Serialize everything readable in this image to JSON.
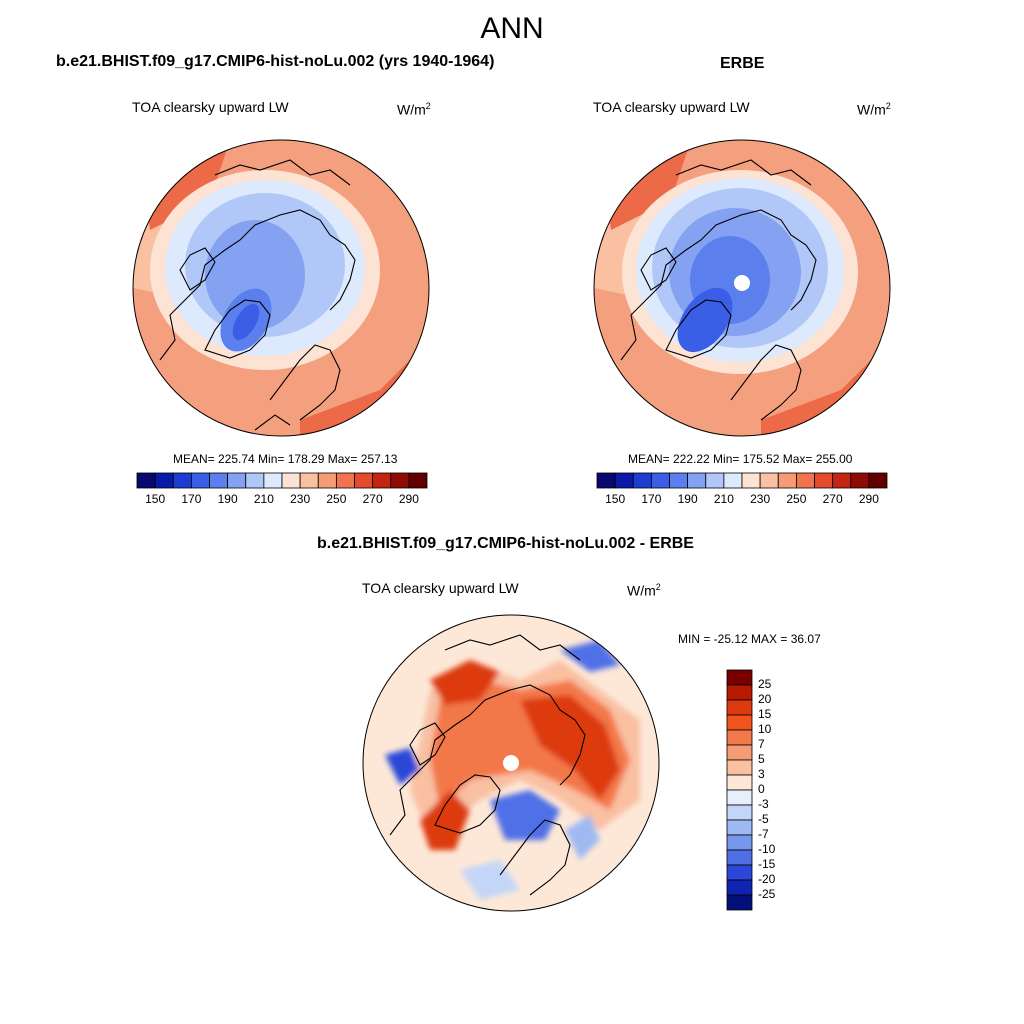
{
  "figure": {
    "season": "ANN",
    "left_title": "b.e21.BHIST.f09_g17.CMIP6-hist-noLu.002 (yrs 1940-1964)",
    "right_title": "ERBE",
    "diff_title": "b.e21.BHIST.f09_g17.CMIP6-hist-noLu.002 - ERBE",
    "variable": "TOA clearsky upward LW",
    "units_base": "W/m",
    "units_exp": "2"
  },
  "chart_data": [
    {
      "type": "heatmap",
      "name": "model",
      "title": "TOA clearsky upward LW",
      "projection": "north polar stereographic",
      "stats_text": "MEAN= 225.74  Min= 178.29  Max= 257.13",
      "mean": 225.74,
      "min": 178.29,
      "max": 257.13,
      "colorbar_ticks": [
        "150",
        "170",
        "190",
        "210",
        "230",
        "250",
        "270",
        "290"
      ],
      "colorbar_levels": [
        150,
        160,
        170,
        180,
        190,
        200,
        210,
        220,
        230,
        240,
        250,
        260,
        270,
        280,
        290
      ],
      "colorbar_colors": [
        "#08086e",
        "#0a1aa8",
        "#1c3dd4",
        "#3a5fe6",
        "#5b7fec",
        "#85a2f2",
        "#b0c7f8",
        "#dde9fc",
        "#fde3d3",
        "#f9c0a2",
        "#f59c77",
        "#f0744f",
        "#e44a2c",
        "#c32512",
        "#8f0c06",
        "#600000"
      ]
    },
    {
      "type": "heatmap",
      "name": "obs",
      "title": "TOA clearsky upward LW",
      "projection": "north polar stereographic",
      "stats_text": "MEAN= 222.22  Min= 175.52  Max= 255.00",
      "mean": 222.22,
      "min": 175.52,
      "max": 255.0,
      "colorbar_ticks": [
        "150",
        "170",
        "190",
        "210",
        "230",
        "250",
        "270",
        "290"
      ],
      "colorbar_levels": [
        150,
        160,
        170,
        180,
        190,
        200,
        210,
        220,
        230,
        240,
        250,
        260,
        270,
        280,
        290
      ],
      "colorbar_colors": [
        "#08086e",
        "#0a1aa8",
        "#1c3dd4",
        "#3a5fe6",
        "#5b7fec",
        "#85a2f2",
        "#b0c7f8",
        "#dde9fc",
        "#fde3d3",
        "#f9c0a2",
        "#f59c77",
        "#f0744f",
        "#e44a2c",
        "#c32512",
        "#8f0c06",
        "#600000"
      ]
    },
    {
      "type": "heatmap",
      "name": "difference",
      "title": "TOA clearsky upward LW",
      "projection": "north polar stereographic",
      "stats_text": "MIN = -25.12 MAX =  36.07",
      "min": -25.12,
      "max": 36.07,
      "colorbar_ticks": [
        "25",
        "20",
        "15",
        "10",
        "7",
        "5",
        "3",
        "0",
        "-3",
        "-5",
        "-7",
        "-10",
        "-15",
        "-20",
        "-25"
      ],
      "colorbar_colors": [
        "#7a0000",
        "#b81a00",
        "#dd3a10",
        "#f0541c",
        "#f3784a",
        "#f59c77",
        "#f9c0a2",
        "#fde8d8",
        "#e7eefc",
        "#c4d6f8",
        "#9fb9f3",
        "#7797ee",
        "#4f6fe6",
        "#2a47d8",
        "#0f24b0",
        "#050f7a"
      ]
    }
  ]
}
